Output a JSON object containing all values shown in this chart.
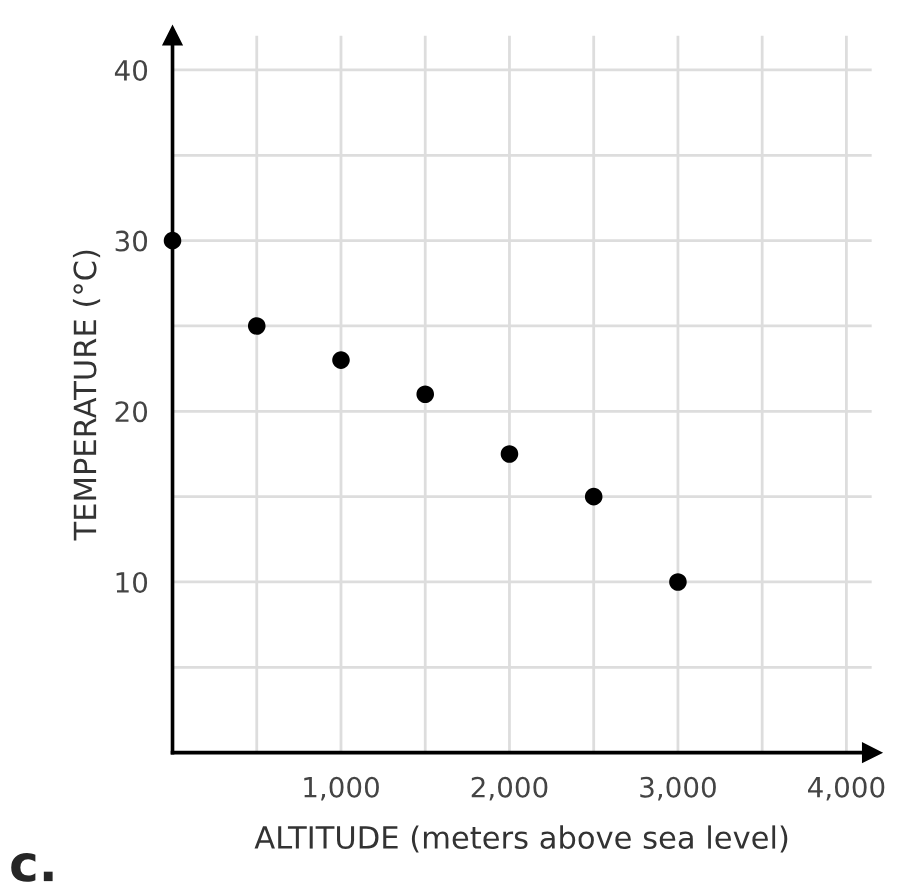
{
  "chart_data": {
    "type": "scatter",
    "xlabel": "ALTITUDE (meters above sea level)",
    "ylabel": "TEMPERATURE (°C)",
    "x": [
      0,
      500,
      1000,
      1500,
      2000,
      2500,
      3000
    ],
    "series": [
      {
        "color": "#000000",
        "values": [
          30,
          25,
          23,
          21,
          17.5,
          15,
          10
        ]
      }
    ],
    "xlim": [
      0,
      4150
    ],
    "ylim": [
      0,
      42
    ],
    "xticks": [
      {
        "value": 500,
        "label": null
      },
      {
        "value": 1000,
        "label": "1,000"
      },
      {
        "value": 1500,
        "label": null
      },
      {
        "value": 2000,
        "label": "2,000"
      },
      {
        "value": 2500,
        "label": null
      },
      {
        "value": 3000,
        "label": "3,000"
      },
      {
        "value": 3500,
        "label": null
      },
      {
        "value": 4000,
        "label": "4,000"
      }
    ],
    "yticks": [
      {
        "value": 5,
        "label": null
      },
      10,
      {
        "value": 15,
        "label": null
      },
      20,
      {
        "value": 25,
        "label": null
      },
      30,
      {
        "value": 35,
        "label": null
      },
      40
    ],
    "grid": true,
    "marker": "circle",
    "annotations": [
      "c."
    ]
  }
}
